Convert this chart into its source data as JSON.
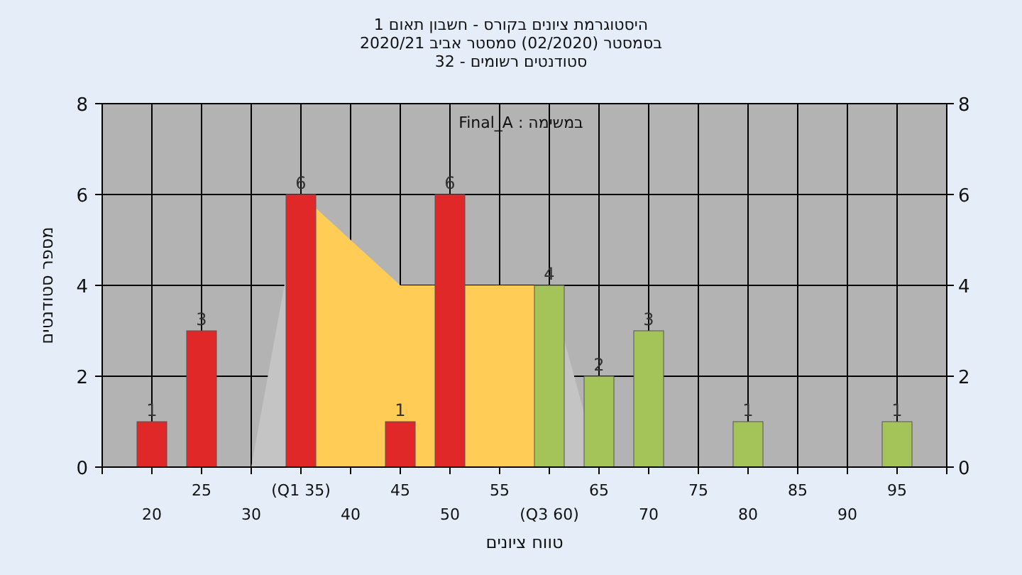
{
  "chart_data": {
    "type": "bar",
    "title": "היסטוגרמת ציונים בקורס - חשבון תאום 1",
    "subtitle": "בסמסטר  (02/2020)  סמסטר אביב 2020/21\nסטודנטים רשומים - 32",
    "xlabel": "טווח ציונים",
    "ylabel": "מספר סטודנטים",
    "annotations": [
      "במשימה : Final_A"
    ],
    "categories": [
      "20",
      "25",
      "30",
      "(Q1 35)",
      "40",
      "45",
      "50",
      "55",
      "(Q3 60)",
      "65",
      "70",
      "75",
      "80",
      "85",
      "90",
      "95"
    ],
    "series": [
      {
        "type": "area",
        "color": "#c4c4c4",
        "values": [
          null,
          null,
          0,
          6,
          null,
          null,
          null,
          null,
          null,
          null,
          null,
          null,
          null,
          null,
          null,
          null
        ]
      },
      {
        "type": "area",
        "color": "#ffcc55",
        "values": [
          null,
          null,
          null,
          6,
          5,
          4,
          null,
          4,
          4,
          null,
          null,
          null,
          null,
          null,
          null,
          null
        ]
      },
      {
        "type": "area",
        "color": "#c4c4c4",
        "values": [
          null,
          null,
          null,
          null,
          null,
          null,
          null,
          null,
          4,
          0,
          null,
          null,
          null,
          null,
          null,
          null
        ]
      },
      {
        "colors": [
          "#e02828",
          "#e02828",
          null,
          "#e02828",
          null,
          "#e02828",
          "#e02828",
          null,
          "#a4c45a",
          "#a4c45a",
          "#a4c45a",
          null,
          "#a4c45a",
          null,
          null,
          "#a4c45a"
        ],
        "values": [
          1,
          3,
          null,
          6,
          null,
          1,
          6,
          null,
          4,
          2,
          3,
          null,
          1,
          null,
          null,
          1
        ],
        "value_labels": [
          "1",
          "3",
          null,
          "6",
          null,
          "1",
          "6",
          null,
          "4",
          "2",
          "3",
          null,
          "1",
          null,
          null,
          "1"
        ]
      }
    ],
    "ylim": [
      0,
      8
    ],
    "yticks": [
      0,
      2,
      4,
      6,
      8
    ],
    "y2lim": [
      0,
      8
    ],
    "y2ticks": [
      0,
      2,
      4,
      6,
      8
    ],
    "grid": true
  }
}
